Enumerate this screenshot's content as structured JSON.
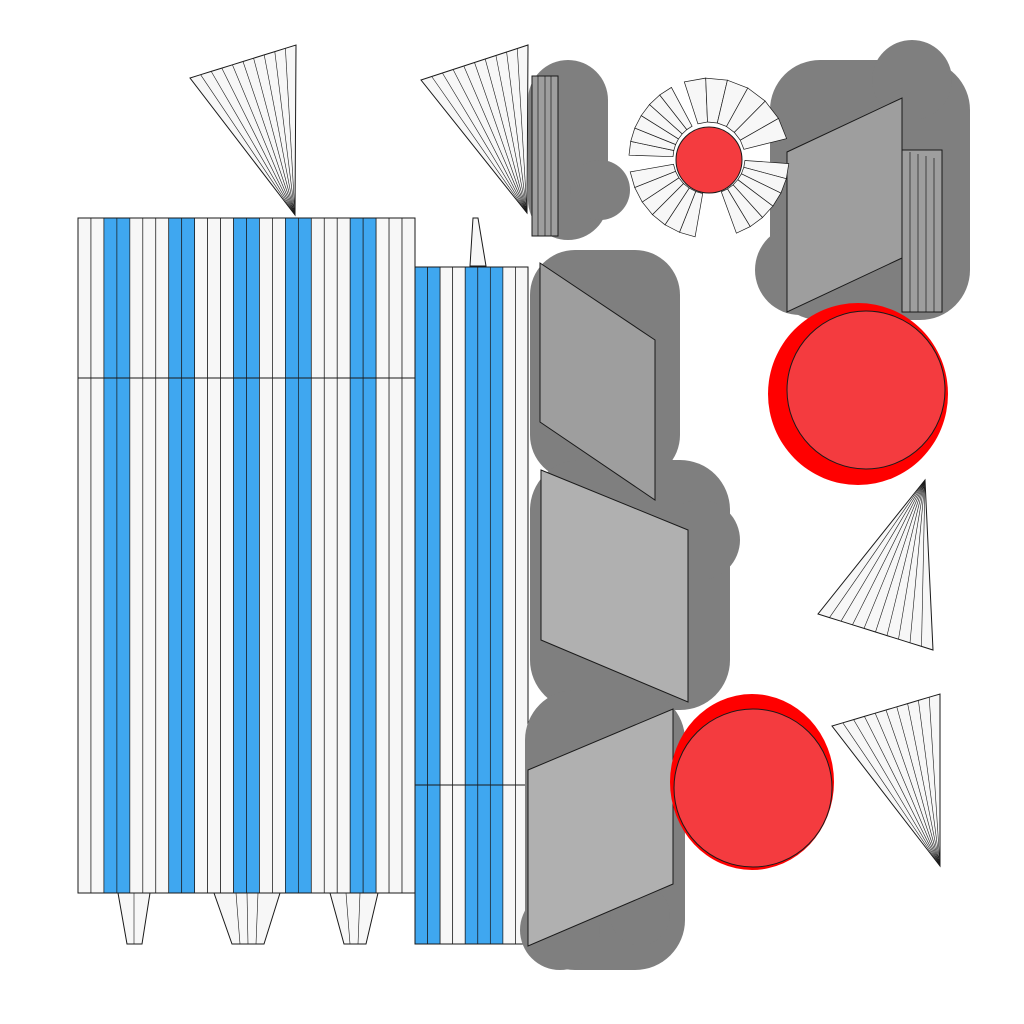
{
  "palette": {
    "background": "#ffffff",
    "stripe_blue": "#3fa7f0",
    "panel_white": "#f7f7f7",
    "shadow_gray": "#7f7f7f",
    "panel_gray": "#9e9e9e",
    "panel_gray_light": "#b0b0b0",
    "red_fill": "#f43b3f",
    "red_glow": "#ff0000",
    "outline": "#1a1a1a"
  },
  "elements": [
    "striped-panel-left",
    "striped-panel-right",
    "fan-top-left",
    "fan-top-middle",
    "fan-right-middle",
    "fan-right-bottom",
    "radial-fan-top",
    "gray-parallelogram-stack",
    "red-circle-large",
    "red-circle-bottom",
    "red-circle-small"
  ]
}
